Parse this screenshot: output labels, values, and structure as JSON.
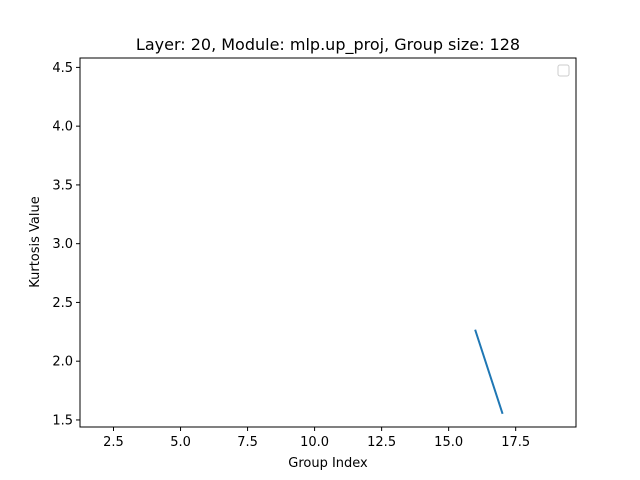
{
  "chart_data": {
    "type": "line",
    "title": "Layer: 20, Module: mlp.up_proj,  Group size: 128",
    "xlabel": "Group Index",
    "ylabel": "Kurtosis Value",
    "xlim": [
      1.25,
      19.75
    ],
    "ylim": [
      1.44,
      4.58
    ],
    "xticks": [
      2.5,
      5.0,
      7.5,
      10.0,
      12.5,
      15.0,
      17.5
    ],
    "xtick_labels": [
      "2.5",
      "5.0",
      "7.5",
      "10.0",
      "12.5",
      "15.0",
      "17.5"
    ],
    "yticks": [
      1.5,
      2.0,
      2.5,
      3.0,
      3.5,
      4.0,
      4.5
    ],
    "ytick_labels": [
      "1.5",
      "2.0",
      "2.5",
      "3.0",
      "3.5",
      "4.0",
      "4.5"
    ],
    "grid": false,
    "legend": {
      "placement": "upper right",
      "entries": []
    },
    "series": [
      {
        "color": "#1f77b4",
        "x": [
          16,
          17
        ],
        "y": [
          2.26,
          1.56
        ]
      }
    ]
  }
}
